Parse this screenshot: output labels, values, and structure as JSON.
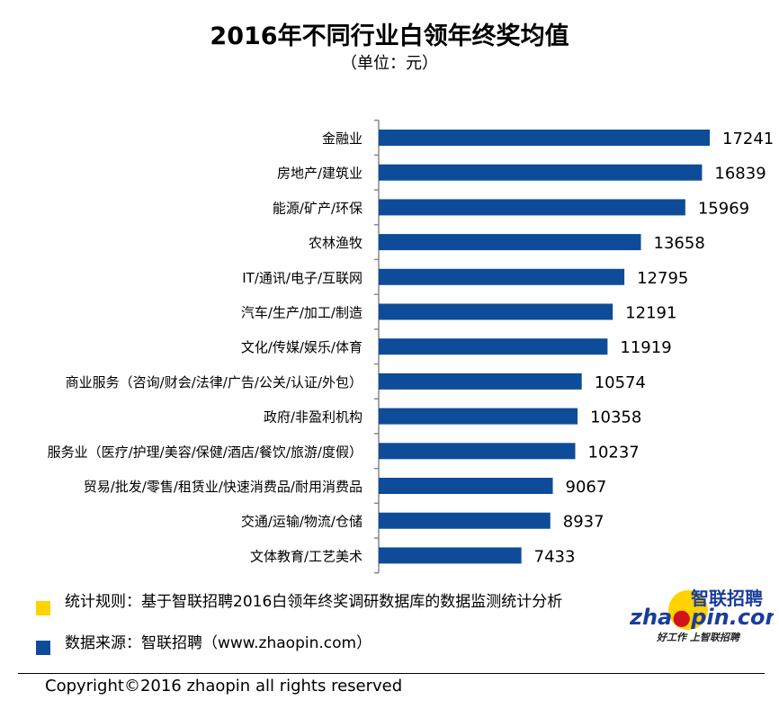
{
  "chart_data": {
    "type": "bar",
    "orientation": "horizontal",
    "title": "2016年不同行业白领年终奖均值",
    "subtitle": "（单位：元）",
    "categories": [
      "金融业",
      "房地产/建筑业",
      "能源/矿产/环保",
      "农林渔牧",
      "IT/通讯/电子/互联网",
      "汽车/生产/加工/制造",
      "文化/传媒/娱乐/体育",
      "商业服务（咨询/财会/法律/广告/公关/认证/外包）",
      "政府/非盈利机构",
      "服务业（医疗/护理/美容/保健/酒店/餐饮/旅游/度假）",
      "贸易/批发/零售/租赁业/快速消费品/耐用消费品",
      "交通/运输/物流/仓储",
      "文体教育/工艺美术"
    ],
    "values": [
      17241,
      16839,
      15969,
      13658,
      12795,
      12191,
      11919,
      10574,
      10358,
      10237,
      9067,
      8937,
      7433
    ],
    "xlim": [
      0,
      17241
    ],
    "grid": false,
    "bar_color": "#0E4C9A"
  },
  "notes": {
    "rule": "统计规则：基于智联招聘2016白领年终奖调研数据库的数据监测统计分析",
    "source": "数据来源：智联招聘（www.zhaopin.com）",
    "rule_color": "#FFD200",
    "source_color": "#0E4C9A"
  },
  "logo": {
    "cn": "智联招聘",
    "en": "zhaopin.com",
    "slogan": "好工作 上智联招聘"
  },
  "footer": {
    "copyright": "Copyright©2016 zhaopin all rights reserved"
  }
}
